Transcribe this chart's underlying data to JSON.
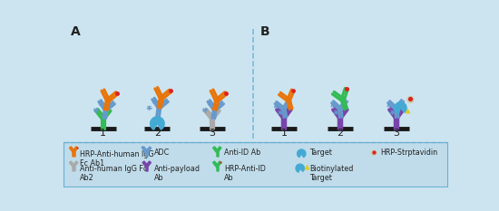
{
  "bg": "#cce4f0",
  "divider": "#6aafd4",
  "bar_color": "#1a1a1a",
  "orange": "#e8750a",
  "blue": "#6699cc",
  "blue_dark": "#4477aa",
  "green": "#33bb55",
  "gray": "#aaaaaa",
  "purple": "#7744aa",
  "teal": "#44aad4",
  "red": "#dd2222",
  "yellow": "#ddcc22",
  "beige": "#ccccaa",
  "text_color": "#222222",
  "legend_items_row1": [
    {
      "label": "HRP-Anti-human IgG\nFc Ab1"
    },
    {
      "label": "ADC"
    },
    {
      "label": "Anti-ID Ab"
    },
    {
      "label": "Target"
    }
  ],
  "legend_items_row2": [
    {
      "label": "Anti-human IgG Fc\nAb2"
    },
    {
      "label": "Anti-payload\nAb"
    },
    {
      "label": "HRP-Anti-ID\nAb"
    },
    {
      "label": "Biotinylated\nTarget"
    },
    {
      "label": "HRP-Strptavidin"
    }
  ]
}
